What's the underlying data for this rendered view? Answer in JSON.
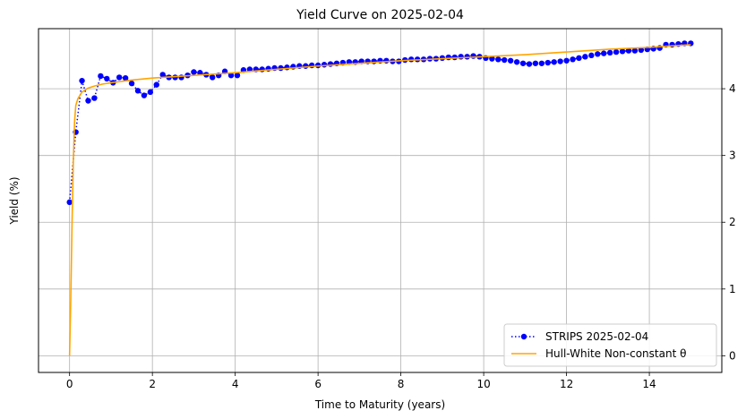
{
  "chart_data": {
    "type": "line",
    "title": "Yield Curve on 2025-02-04",
    "xlabel": "Time to Maturity (years)",
    "ylabel": "Yield (%)",
    "xlim": [
      -0.75,
      15.75
    ],
    "ylim": [
      -0.25,
      4.9
    ],
    "x_ticks": [
      0,
      2,
      4,
      6,
      8,
      10,
      12,
      14
    ],
    "y_ticks": [
      0,
      1,
      2,
      3,
      4
    ],
    "y_tick_labels_side": "right",
    "grid": true,
    "legend_position": "lower-right",
    "series": [
      {
        "name": "STRIPS 2025-02-04",
        "style": "dotted-line-with-circle-markers",
        "color": "#0000ff",
        "points": [
          [
            0.0,
            2.3
          ],
          [
            0.15,
            3.35
          ],
          [
            0.3,
            4.12
          ],
          [
            0.45,
            3.82
          ],
          [
            0.6,
            3.86
          ],
          [
            0.75,
            4.19
          ],
          [
            0.9,
            4.15
          ],
          [
            1.05,
            4.09
          ],
          [
            1.2,
            4.17
          ],
          [
            1.35,
            4.16
          ],
          [
            1.5,
            4.08
          ],
          [
            1.65,
            3.97
          ],
          [
            1.8,
            3.9
          ],
          [
            1.95,
            3.95
          ],
          [
            2.1,
            4.06
          ],
          [
            2.25,
            4.21
          ],
          [
            2.4,
            4.17
          ],
          [
            2.55,
            4.17
          ],
          [
            2.7,
            4.17
          ],
          [
            2.85,
            4.2
          ],
          [
            3.0,
            4.25
          ],
          [
            3.15,
            4.24
          ],
          [
            3.3,
            4.21
          ],
          [
            3.45,
            4.17
          ],
          [
            3.6,
            4.2
          ],
          [
            3.75,
            4.26
          ],
          [
            3.9,
            4.2
          ],
          [
            4.05,
            4.2
          ],
          [
            4.2,
            4.28
          ],
          [
            4.35,
            4.29
          ],
          [
            4.5,
            4.29
          ],
          [
            4.65,
            4.29
          ],
          [
            4.8,
            4.3
          ],
          [
            4.95,
            4.31
          ],
          [
            5.1,
            4.31
          ],
          [
            5.25,
            4.32
          ],
          [
            5.4,
            4.33
          ],
          [
            5.55,
            4.34
          ],
          [
            5.7,
            4.34
          ],
          [
            5.85,
            4.35
          ],
          [
            6.0,
            4.35
          ],
          [
            6.15,
            4.36
          ],
          [
            6.3,
            4.37
          ],
          [
            6.45,
            4.38
          ],
          [
            6.6,
            4.39
          ],
          [
            6.75,
            4.4
          ],
          [
            6.9,
            4.4
          ],
          [
            7.05,
            4.41
          ],
          [
            7.2,
            4.41
          ],
          [
            7.35,
            4.41
          ],
          [
            7.5,
            4.42
          ],
          [
            7.65,
            4.42
          ],
          [
            7.8,
            4.41
          ],
          [
            7.95,
            4.41
          ],
          [
            8.1,
            4.43
          ],
          [
            8.25,
            4.44
          ],
          [
            8.4,
            4.44
          ],
          [
            8.55,
            4.44
          ],
          [
            8.7,
            4.45
          ],
          [
            8.85,
            4.45
          ],
          [
            9.0,
            4.46
          ],
          [
            9.15,
            4.47
          ],
          [
            9.3,
            4.47
          ],
          [
            9.45,
            4.48
          ],
          [
            9.6,
            4.48
          ],
          [
            9.75,
            4.49
          ],
          [
            9.9,
            4.48
          ],
          [
            10.05,
            4.46
          ],
          [
            10.2,
            4.45
          ],
          [
            10.35,
            4.44
          ],
          [
            10.5,
            4.43
          ],
          [
            10.65,
            4.42
          ],
          [
            10.8,
            4.4
          ],
          [
            10.95,
            4.38
          ],
          [
            11.1,
            4.37
          ],
          [
            11.25,
            4.38
          ],
          [
            11.4,
            4.38
          ],
          [
            11.55,
            4.39
          ],
          [
            11.7,
            4.4
          ],
          [
            11.85,
            4.41
          ],
          [
            12.0,
            4.42
          ],
          [
            12.15,
            4.44
          ],
          [
            12.3,
            4.46
          ],
          [
            12.45,
            4.48
          ],
          [
            12.6,
            4.5
          ],
          [
            12.75,
            4.52
          ],
          [
            12.9,
            4.53
          ],
          [
            13.05,
            4.54
          ],
          [
            13.2,
            4.55
          ],
          [
            13.35,
            4.56
          ],
          [
            13.5,
            4.57
          ],
          [
            13.65,
            4.57
          ],
          [
            13.8,
            4.58
          ],
          [
            13.95,
            4.59
          ],
          [
            14.1,
            4.6
          ],
          [
            14.25,
            4.61
          ],
          [
            14.4,
            4.66
          ],
          [
            14.55,
            4.66
          ],
          [
            14.7,
            4.67
          ],
          [
            14.85,
            4.68
          ],
          [
            15.0,
            4.68
          ]
        ]
      },
      {
        "name": "Hull-White Non-constant θ",
        "style": "solid-line",
        "color": "#ffa500",
        "points": [
          [
            0.0,
            0.0
          ],
          [
            0.03,
            0.9
          ],
          [
            0.06,
            2.0
          ],
          [
            0.09,
            2.9
          ],
          [
            0.12,
            3.5
          ],
          [
            0.15,
            3.75
          ],
          [
            0.2,
            3.85
          ],
          [
            0.3,
            3.95
          ],
          [
            0.45,
            4.01
          ],
          [
            0.6,
            4.04
          ],
          [
            0.8,
            4.07
          ],
          [
            1.0,
            4.09
          ],
          [
            1.5,
            4.13
          ],
          [
            2.0,
            4.16
          ],
          [
            2.5,
            4.18
          ],
          [
            3.0,
            4.2
          ],
          [
            3.5,
            4.22
          ],
          [
            4.0,
            4.24
          ],
          [
            5.0,
            4.29
          ],
          [
            6.0,
            4.34
          ],
          [
            7.0,
            4.38
          ],
          [
            8.0,
            4.42
          ],
          [
            9.0,
            4.45
          ],
          [
            10.0,
            4.48
          ],
          [
            11.0,
            4.51
          ],
          [
            12.0,
            4.55
          ],
          [
            13.0,
            4.59
          ],
          [
            14.0,
            4.62
          ],
          [
            15.0,
            4.66
          ]
        ]
      }
    ]
  }
}
